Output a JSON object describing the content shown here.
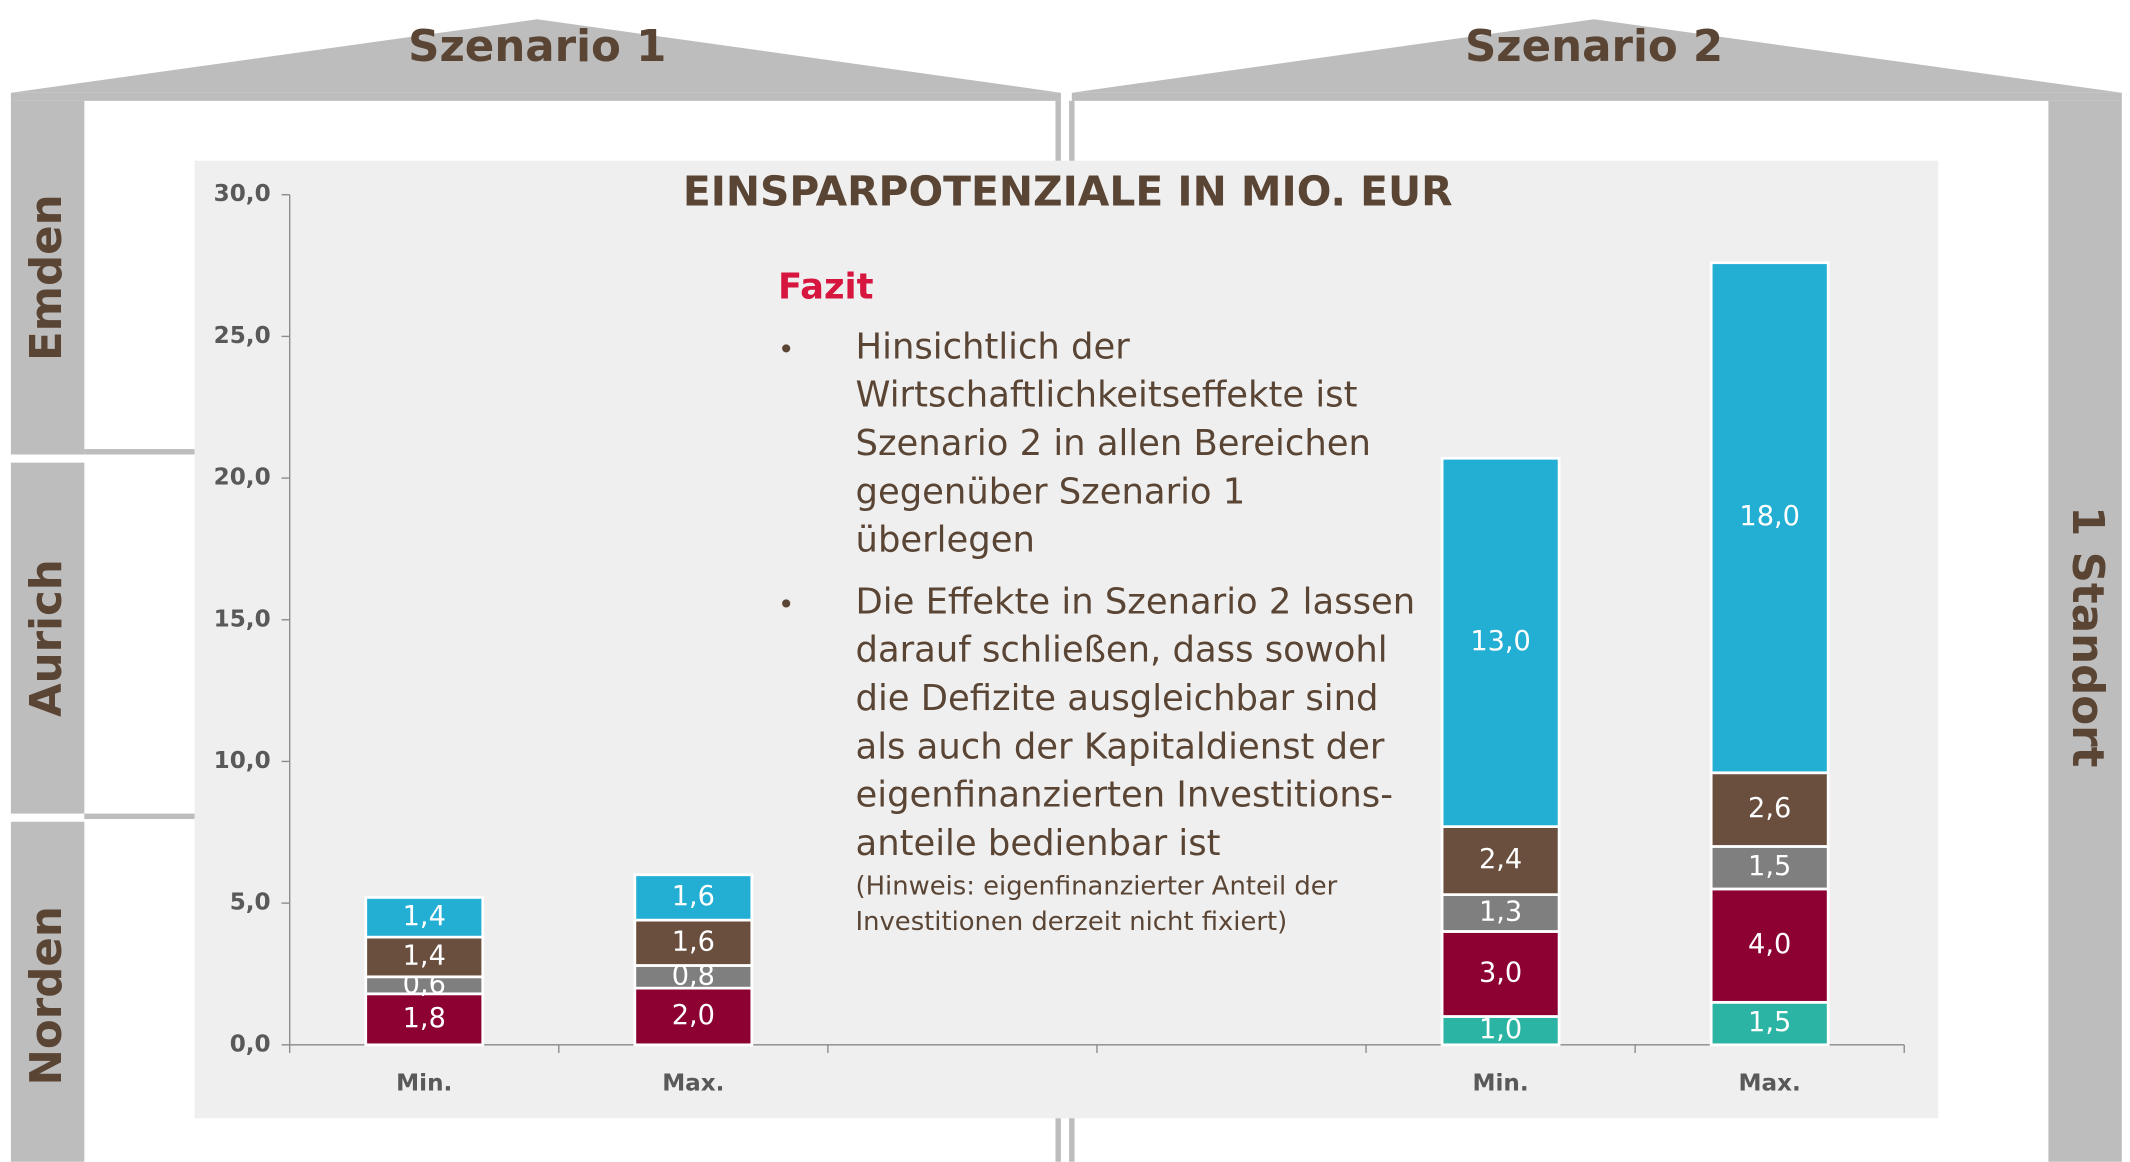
{
  "frame": {
    "scenario_1": "Szenario 1",
    "scenario_2": "Szenario 2",
    "rows": [
      "Emden",
      "Aurich",
      "Norden"
    ],
    "right": "1 Standort"
  },
  "note": {
    "heading": "Fazit",
    "bullets": [
      [
        "Hinsichtlich der",
        "Wirtschaftlichkeitseffekte ist",
        "Szenario 2 in allen Bereichen",
        "gegenüber Szenario 1",
        "überlegen"
      ],
      [
        "Die Effekte in Szenario 2 lassen",
        "darauf schließen, dass sowohl",
        "die Defizite ausgleichbar sind",
        "als auch der Kapitaldienst der",
        "eigenfinanzierten Investitions-",
        "anteile bedienbar ist"
      ]
    ],
    "hint": [
      "(Hinweis: eigenfinanzierter Anteil der",
      "Investitionen derzeit nicht fixiert)"
    ]
  },
  "chart_data": {
    "type": "stacked_bar",
    "title": "EINSPARPOTENZIALE IN MIO. EUR",
    "categories": [
      "Min.",
      "Max.",
      null,
      null,
      "Min.",
      "Max."
    ],
    "series": [
      {
        "color": "#2bb3a3",
        "values": [
          null,
          null,
          null,
          null,
          1.0,
          1.5
        ],
        "value_labels": [
          null,
          null,
          null,
          null,
          "1,0",
          "1,5"
        ]
      },
      {
        "color": "#8c0032",
        "values": [
          1.8,
          2.0,
          null,
          null,
          3.0,
          4.0
        ],
        "value_labels": [
          "1,8",
          "2,0",
          null,
          null,
          "3,0",
          "4,0"
        ]
      },
      {
        "color": "#7f7f7f",
        "values": [
          0.6,
          0.8,
          null,
          null,
          1.3,
          1.5
        ],
        "value_labels": [
          "0,6",
          "0,8",
          null,
          null,
          "1,3",
          "1,5"
        ]
      },
      {
        "color": "#6a4f3e",
        "values": [
          1.4,
          1.6,
          null,
          null,
          2.4,
          2.6
        ],
        "value_labels": [
          "1,4",
          "1,6",
          null,
          null,
          "2,4",
          "2,6"
        ]
      },
      {
        "color": "#23aed4",
        "values": [
          1.4,
          1.6,
          null,
          null,
          13.0,
          18.0
        ],
        "value_labels": [
          "1,4",
          "1,6",
          null,
          null,
          "13,0",
          "18,0"
        ]
      }
    ],
    "ylim": [
      0,
      30
    ],
    "yticks": [
      {
        "value": 0,
        "label": "0,0"
      },
      {
        "value": 5,
        "label": "5,0"
      },
      {
        "value": 10,
        "label": "10,0"
      },
      {
        "value": 15,
        "label": "15,0"
      },
      {
        "value": 20,
        "label": "20,0"
      },
      {
        "value": 25,
        "label": "25,0"
      },
      {
        "value": 30,
        "label": "30,0"
      }
    ]
  }
}
